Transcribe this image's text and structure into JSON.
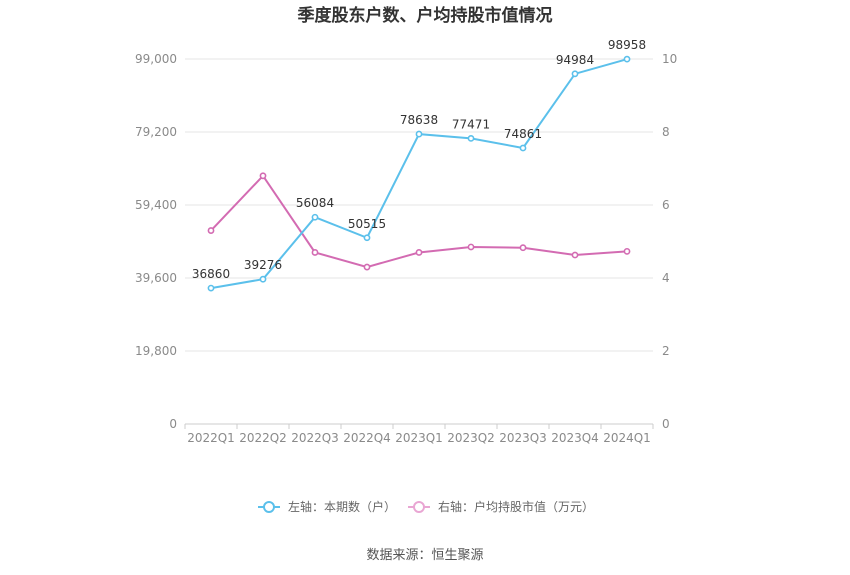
{
  "chart_data": {
    "type": "line",
    "title": "季度股东户数、户均持股市值情况",
    "categories": [
      "2022Q1",
      "2022Q2",
      "2022Q3",
      "2022Q4",
      "2023Q1",
      "2023Q2",
      "2023Q3",
      "2023Q4",
      "2024Q1"
    ],
    "series": [
      {
        "name": "左轴：本期数（户）",
        "axis": "left",
        "color": "#5bc0eb",
        "values": [
          36860,
          39276,
          56084,
          50515,
          78638,
          77471,
          74861,
          94984,
          98958
        ],
        "labels": [
          "36860",
          "39276",
          "56084",
          "50515",
          "78638",
          "77471",
          "74861",
          "94984",
          "98958"
        ]
      },
      {
        "name": "右轴：户均持股市值（万元）",
        "axis": "right",
        "color": "#d36bb2",
        "values": [
          5.3,
          6.8,
          4.7,
          4.3,
          4.7,
          4.85,
          4.83,
          4.63,
          4.73
        ]
      }
    ],
    "y_left": {
      "min": 0,
      "max": 99000,
      "ticks": [
        0,
        19800,
        39600,
        59400,
        79200,
        99000
      ],
      "tick_labels": [
        "0",
        "19,800",
        "39,600",
        "59,400",
        "79,200",
        "99,000"
      ]
    },
    "y_right": {
      "min": 0,
      "max": 10,
      "ticks": [
        0,
        2,
        4,
        6,
        8,
        10
      ],
      "tick_labels": [
        "0",
        "2",
        "4",
        "6",
        "8",
        "10"
      ]
    },
    "grid": true,
    "legend_position": "bottom",
    "source": "数据来源：恒生聚源"
  }
}
